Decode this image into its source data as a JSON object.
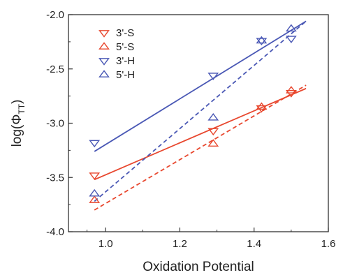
{
  "chart_data": {
    "type": "scatter",
    "xlabel": "Oxidation Potential",
    "ylabel": "log(Φ",
    "ylabel_sub": "TT",
    "ylabel_close": ")",
    "xlim": [
      0.9,
      1.6
    ],
    "ylim": [
      -4.0,
      -2.0
    ],
    "x_ticks": [
      1.0,
      1.2,
      1.4,
      1.6
    ],
    "x_tick_labels": [
      "1.0",
      "1.2",
      "1.4",
      "1.6"
    ],
    "y_ticks": [
      -4.0,
      -3.5,
      -3.0,
      -2.5,
      -2.0
    ],
    "y_tick_labels": [
      "-4.0",
      "-3.5",
      "-3.0",
      "-2.5",
      "-2.0"
    ],
    "grid": false,
    "legend_position": "top-left",
    "series": [
      {
        "name": "3'-S",
        "color": "#e8472e",
        "marker": "triangle-down",
        "x": [
          0.97,
          1.29,
          1.42,
          1.5
        ],
        "y": [
          -3.48,
          -3.07,
          -2.86,
          -2.72
        ],
        "fit": {
          "style": "solid",
          "x": [
            0.97,
            1.54
          ],
          "y": [
            -3.52,
            -2.68
          ]
        }
      },
      {
        "name": "5'-S",
        "color": "#e8472e",
        "marker": "triangle-up",
        "x": [
          0.97,
          1.29,
          1.42,
          1.5
        ],
        "y": [
          -3.71,
          -3.19,
          -2.85,
          -2.7
        ],
        "fit": {
          "style": "dashed",
          "x": [
            0.97,
            1.54
          ],
          "y": [
            -3.8,
            -2.65
          ]
        }
      },
      {
        "name": "3'-H",
        "color": "#4a58b5",
        "marker": "triangle-down",
        "x": [
          0.97,
          1.29,
          1.42,
          1.5
        ],
        "y": [
          -3.18,
          -2.56,
          -2.24,
          -2.22
        ],
        "fit": {
          "style": "solid",
          "x": [
            0.97,
            1.54
          ],
          "y": [
            -3.26,
            -2.06
          ]
        }
      },
      {
        "name": "5'-H",
        "color": "#4a58b5",
        "marker": "triangle-up",
        "x": [
          0.97,
          1.29,
          1.42,
          1.5
        ],
        "y": [
          -3.65,
          -2.95,
          -2.24,
          -2.13
        ],
        "fit": {
          "style": "dashed",
          "x": [
            0.97,
            1.54
          ],
          "y": [
            -3.72,
            -2.06
          ]
        }
      }
    ]
  }
}
